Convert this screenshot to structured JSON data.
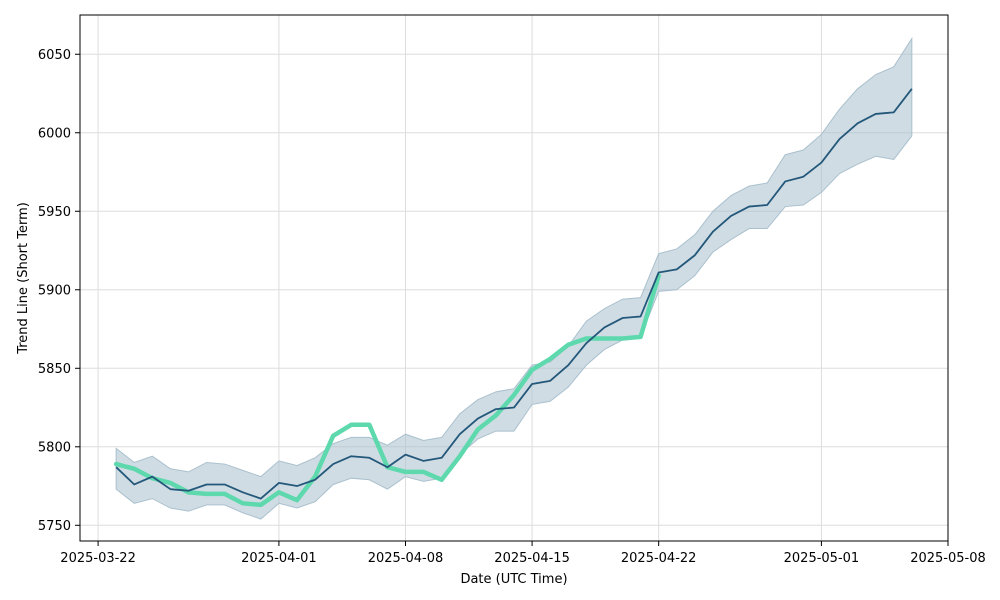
{
  "chart_data": {
    "type": "line",
    "xlabel": "Date (UTC Time)",
    "ylabel": "Trend Line (Short Term)",
    "x_axis_type": "date",
    "xlim": [
      "2025-03-21",
      "2025-05-08"
    ],
    "ylim": [
      5740,
      6075
    ],
    "grid": true,
    "legend": "none",
    "x_ticks": [
      "2025-03-22",
      "2025-04-01",
      "2025-04-08",
      "2025-04-15",
      "2025-04-22",
      "2025-05-01",
      "2025-05-08"
    ],
    "y_ticks": [
      5750,
      5800,
      5850,
      5900,
      5950,
      6000,
      6050
    ],
    "colors": {
      "band": "#a9c0cd",
      "trend": "#23587a",
      "actual": "#5ed8ad",
      "grid": "#dddddd"
    },
    "series": [
      {
        "role": "trend",
        "x": [
          "2025-03-23",
          "2025-03-24",
          "2025-03-25",
          "2025-03-26",
          "2025-03-27",
          "2025-03-28",
          "2025-03-29",
          "2025-03-30",
          "2025-03-31",
          "2025-04-01",
          "2025-04-02",
          "2025-04-03",
          "2025-04-04",
          "2025-04-05",
          "2025-04-06",
          "2025-04-07",
          "2025-04-08",
          "2025-04-09",
          "2025-04-10",
          "2025-04-11",
          "2025-04-12",
          "2025-04-13",
          "2025-04-14",
          "2025-04-15",
          "2025-04-16",
          "2025-04-17",
          "2025-04-18",
          "2025-04-19",
          "2025-04-20",
          "2025-04-21",
          "2025-04-22",
          "2025-04-23",
          "2025-04-24",
          "2025-04-25",
          "2025-04-26",
          "2025-04-27",
          "2025-04-28",
          "2025-04-29",
          "2025-04-30",
          "2025-05-01",
          "2025-05-02",
          "2025-05-03",
          "2025-05-04",
          "2025-05-05",
          "2025-05-06"
        ],
        "y": [
          5787,
          5776,
          5781,
          5773,
          5772,
          5776,
          5776,
          5771,
          5767,
          5777,
          5775,
          5779,
          5789,
          5794,
          5793,
          5787,
          5795,
          5791,
          5793,
          5808,
          5818,
          5824,
          5825,
          5840,
          5842,
          5852,
          5866,
          5876,
          5882,
          5883,
          5911,
          5913,
          5922,
          5937,
          5947,
          5953,
          5954,
          5969,
          5972,
          5981,
          5996,
          6006,
          6012,
          6013,
          6028
        ]
      },
      {
        "role": "band_upper",
        "x": [
          "2025-03-23",
          "2025-03-24",
          "2025-03-25",
          "2025-03-26",
          "2025-03-27",
          "2025-03-28",
          "2025-03-29",
          "2025-03-30",
          "2025-03-31",
          "2025-04-01",
          "2025-04-02",
          "2025-04-03",
          "2025-04-04",
          "2025-04-05",
          "2025-04-06",
          "2025-04-07",
          "2025-04-08",
          "2025-04-09",
          "2025-04-10",
          "2025-04-11",
          "2025-04-12",
          "2025-04-13",
          "2025-04-14",
          "2025-04-15",
          "2025-04-16",
          "2025-04-17",
          "2025-04-18",
          "2025-04-19",
          "2025-04-20",
          "2025-04-21",
          "2025-04-22",
          "2025-04-23",
          "2025-04-24",
          "2025-04-25",
          "2025-04-26",
          "2025-04-27",
          "2025-04-28",
          "2025-04-29",
          "2025-04-30",
          "2025-05-01",
          "2025-05-02",
          "2025-05-03",
          "2025-05-04",
          "2025-05-05",
          "2025-05-06"
        ],
        "y": [
          5799,
          5790,
          5794,
          5786,
          5784,
          5790,
          5789,
          5785,
          5781,
          5791,
          5788,
          5793,
          5802,
          5806,
          5806,
          5801,
          5808,
          5804,
          5806,
          5821,
          5830,
          5835,
          5837,
          5852,
          5854,
          5864,
          5880,
          5888,
          5894,
          5895,
          5923,
          5926,
          5935,
          5950,
          5960,
          5966,
          5968,
          5986,
          5989,
          5999,
          6015,
          6028,
          6037,
          6042,
          6060
        ]
      },
      {
        "role": "band_lower",
        "x": [
          "2025-03-23",
          "2025-03-24",
          "2025-03-25",
          "2025-03-26",
          "2025-03-27",
          "2025-03-28",
          "2025-03-29",
          "2025-03-30",
          "2025-03-31",
          "2025-04-01",
          "2025-04-02",
          "2025-04-03",
          "2025-04-04",
          "2025-04-05",
          "2025-04-06",
          "2025-04-07",
          "2025-04-08",
          "2025-04-09",
          "2025-04-10",
          "2025-04-11",
          "2025-04-12",
          "2025-04-13",
          "2025-04-14",
          "2025-04-15",
          "2025-04-16",
          "2025-04-17",
          "2025-04-18",
          "2025-04-19",
          "2025-04-20",
          "2025-04-21",
          "2025-04-22",
          "2025-04-23",
          "2025-04-24",
          "2025-04-25",
          "2025-04-26",
          "2025-04-27",
          "2025-04-28",
          "2025-04-29",
          "2025-04-30",
          "2025-05-01",
          "2025-05-02",
          "2025-05-03",
          "2025-05-04",
          "2025-05-05",
          "2025-05-06"
        ],
        "y": [
          5773,
          5764,
          5767,
          5761,
          5759,
          5763,
          5763,
          5758,
          5754,
          5764,
          5761,
          5765,
          5776,
          5780,
          5779,
          5773,
          5781,
          5778,
          5780,
          5795,
          5805,
          5810,
          5810,
          5827,
          5829,
          5838,
          5852,
          5862,
          5868,
          5870,
          5899,
          5900,
          5909,
          5924,
          5932,
          5939,
          5939,
          5953,
          5954,
          5962,
          5974,
          5980,
          5985,
          5983,
          5998
        ]
      },
      {
        "role": "actual",
        "x": [
          "2025-03-23",
          "2025-03-24",
          "2025-03-25",
          "2025-03-26",
          "2025-03-27",
          "2025-03-28",
          "2025-03-29",
          "2025-03-30",
          "2025-03-31",
          "2025-04-01",
          "2025-04-02",
          "2025-04-03",
          "2025-04-04",
          "2025-04-05",
          "2025-04-06",
          "2025-04-07",
          "2025-04-08",
          "2025-04-09",
          "2025-04-10",
          "2025-04-11",
          "2025-04-12",
          "2025-04-13",
          "2025-04-14",
          "2025-04-15",
          "2025-04-16",
          "2025-04-17",
          "2025-04-18",
          "2025-04-19",
          "2025-04-20",
          "2025-04-21",
          "2025-04-22"
        ],
        "y": [
          5789,
          5786,
          5780,
          5777,
          5771,
          5770,
          5770,
          5764,
          5763,
          5771,
          5766,
          5781,
          5807,
          5814,
          5814,
          5787,
          5784,
          5784,
          5779,
          5794,
          5811,
          5820,
          5833,
          5849,
          5856,
          5865,
          5869,
          5869,
          5869,
          5870,
          5909
        ]
      }
    ]
  }
}
